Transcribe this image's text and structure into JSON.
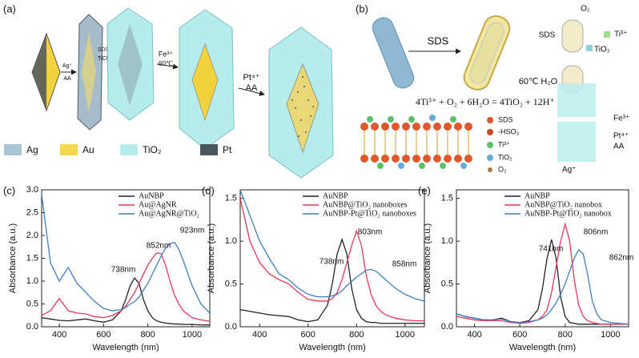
{
  "panel_a": {
    "label": "(a)",
    "steps": [
      {
        "top": "Ag⁺",
        "bottom": "AA"
      },
      {
        "top": "SDS",
        "bottom": "TiCl₃"
      },
      {
        "top": "Fe³⁺",
        "bottom": "60℃"
      },
      {
        "top": "Pt⁴⁺",
        "bottom": "AA"
      }
    ],
    "legend": [
      "Ag",
      "Au",
      "TiO₂",
      "Pt"
    ]
  },
  "panel_b": {
    "label": "(b)",
    "arrow": "SDS",
    "equation": "4Ti³⁺ + O₂ + 6H₂O = 4TiO₂ + 12H⁺",
    "scheme": {
      "sds": "SDS",
      "o2": "O₂",
      "ti": "Ti³⁺",
      "tio2": "TiO₂",
      "heat": "60℃ H₂O",
      "fe": "Fe³⁺",
      "pt": "Pt⁴⁺",
      "aa": "AA",
      "ag": "Ag⁺"
    },
    "legend": [
      "SDS",
      "-HSO₃",
      "Ti³⁺",
      "TiO₂",
      "O₂"
    ]
  },
  "chart_data": [
    {
      "type": "line",
      "title": "(c)",
      "x_label": "Wavelength (nm)",
      "y_label": "Absorbance (a.u.)",
      "x": [
        320,
        360,
        400,
        440,
        480,
        520,
        560,
        600,
        640,
        680,
        700,
        720,
        740,
        760,
        780,
        800,
        820,
        840,
        860,
        880,
        900,
        920,
        940,
        960,
        1000,
        1040,
        1080
      ],
      "xlim": [
        320,
        1080
      ],
      "xticks": [
        400,
        600,
        800,
        1000
      ],
      "ylim": [
        0,
        3
      ],
      "yticks": [
        {
          "value": 0,
          "label": "0.0"
        },
        {
          "value": 0.5,
          "label": "0.5"
        },
        {
          "value": 1,
          "label": "1.0"
        },
        {
          "value": 1.5,
          "label": "1.5"
        },
        {
          "value": 2,
          "label": "2.0"
        },
        {
          "value": 2.5,
          "label": "2.5"
        },
        {
          "value": 3,
          "label": "3.0"
        }
      ],
      "series": [
        {
          "name": "AuNBP",
          "color": "#222222",
          "values": [
            0.2,
            0.17,
            0.14,
            0.13,
            0.15,
            0.17,
            0.13,
            0.1,
            0.15,
            0.35,
            0.6,
            0.9,
            1.07,
            0.95,
            0.6,
            0.35,
            0.2,
            0.13,
            0.1,
            0.08,
            0.07,
            0.06,
            0.06,
            0.05,
            0.05,
            0.04,
            0.04
          ]
        },
        {
          "name": "Au@AgNR",
          "color": "#e8365a",
          "values": [
            0.25,
            0.35,
            0.62,
            0.35,
            0.3,
            0.28,
            0.22,
            0.2,
            0.25,
            0.35,
            0.45,
            0.6,
            0.75,
            0.95,
            1.15,
            1.35,
            1.5,
            1.62,
            1.6,
            1.35,
            1.0,
            0.7,
            0.5,
            0.35,
            0.2,
            0.15,
            0.12
          ]
        },
        {
          "name": "Au@AgNR@TiO₂",
          "color": "#3d7fc4",
          "values": [
            2.9,
            1.4,
            1.0,
            1.3,
            0.95,
            0.75,
            0.55,
            0.4,
            0.35,
            0.38,
            0.42,
            0.5,
            0.55,
            0.65,
            0.8,
            0.95,
            1.15,
            1.35,
            1.55,
            1.72,
            1.82,
            1.85,
            1.7,
            1.45,
            0.9,
            0.5,
            0.3
          ]
        }
      ],
      "annotations": [
        "738nm",
        "852nm",
        "923nm"
      ]
    },
    {
      "type": "line",
      "title": "(d)",
      "x_label": "Wavelength (nm)",
      "y_label": "Absorbance (a.u.)",
      "x": [
        320,
        360,
        400,
        440,
        480,
        520,
        560,
        600,
        640,
        680,
        700,
        720,
        740,
        760,
        780,
        800,
        820,
        840,
        860,
        880,
        900,
        920,
        940,
        960,
        1000,
        1040,
        1080
      ],
      "xlim": [
        320,
        1080
      ],
      "xticks": [
        400,
        600,
        800,
        1000
      ],
      "ylim": [
        0,
        1.6
      ],
      "yticks": [
        {
          "value": 0,
          "label": "0.0"
        },
        0.5,
        {
          "value": 1,
          "label": "1.0"
        },
        1.5
      ],
      "series": [
        {
          "name": "AuNBP",
          "color": "#222222",
          "values": [
            0.2,
            0.18,
            0.16,
            0.14,
            0.13,
            0.12,
            0.08,
            0.06,
            0.08,
            0.25,
            0.5,
            0.85,
            1.02,
            0.85,
            0.45,
            0.2,
            0.1,
            0.06,
            0.05,
            0.05,
            0.04,
            0.04,
            0.04,
            0.04,
            0.04,
            0.04,
            0.04
          ]
        },
        {
          "name": "AuNBP@TiO₂ nanoboxes",
          "color": "#e8365a",
          "values": [
            1.5,
            1.0,
            0.75,
            0.62,
            0.55,
            0.5,
            0.4,
            0.32,
            0.3,
            0.3,
            0.33,
            0.4,
            0.55,
            0.75,
            0.95,
            1.12,
            0.95,
            0.6,
            0.38,
            0.25,
            0.18,
            0.14,
            0.12,
            0.1,
            0.08,
            0.07,
            0.07
          ]
        },
        {
          "name": "AuNBP-Pt@TiO₂ nanoboxes",
          "color": "#3d7fc4",
          "values": [
            1.6,
            1.3,
            1.0,
            0.8,
            0.62,
            0.55,
            0.45,
            0.38,
            0.35,
            0.35,
            0.36,
            0.38,
            0.42,
            0.48,
            0.53,
            0.58,
            0.62,
            0.66,
            0.67,
            0.65,
            0.6,
            0.55,
            0.5,
            0.45,
            0.38,
            0.33,
            0.3
          ]
        }
      ],
      "annotations": [
        "738nm",
        "803nm",
        "858nm"
      ]
    },
    {
      "type": "line",
      "title": "(e)",
      "x_label": "Wavelength (nm)",
      "y_label": "Absorbance (a.u.)",
      "x": [
        320,
        360,
        400,
        440,
        480,
        520,
        560,
        600,
        640,
        680,
        700,
        720,
        740,
        760,
        780,
        800,
        820,
        840,
        860,
        880,
        900,
        920,
        940,
        960,
        1000,
        1040,
        1080
      ],
      "xlim": [
        320,
        1080
      ],
      "xticks": [
        400,
        600,
        800,
        1000
      ],
      "ylim": [
        0,
        1.6
      ],
      "yticks": [
        {
          "value": 0,
          "label": "0.0"
        },
        0.5,
        {
          "value": 1,
          "label": "1.0"
        },
        1.5
      ],
      "series": [
        {
          "name": "AuNBP",
          "color": "#222222",
          "values": [
            0.15,
            0.12,
            0.1,
            0.08,
            0.08,
            0.1,
            0.06,
            0.05,
            0.07,
            0.2,
            0.45,
            0.8,
            1.02,
            0.8,
            0.35,
            0.12,
            0.05,
            0.04,
            0.03,
            0.03,
            0.03,
            0.03,
            0.03,
            0.03,
            0.03,
            0.03,
            0.03
          ]
        },
        {
          "name": "AuNBP@TiO₂ nanobox",
          "color": "#e8365a",
          "values": [
            0.12,
            0.1,
            0.08,
            0.07,
            0.07,
            0.07,
            0.05,
            0.04,
            0.05,
            0.08,
            0.12,
            0.2,
            0.4,
            0.7,
            1.0,
            1.2,
            1.0,
            0.55,
            0.25,
            0.12,
            0.07,
            0.05,
            0.04,
            0.03,
            0.03,
            0.03,
            0.03
          ]
        },
        {
          "name": "AuNBP-Pt@TiO₂ nanobox",
          "color": "#3d7fc4",
          "values": [
            0.15,
            0.12,
            0.1,
            0.08,
            0.08,
            0.09,
            0.06,
            0.05,
            0.06,
            0.08,
            0.1,
            0.14,
            0.2,
            0.28,
            0.38,
            0.5,
            0.65,
            0.8,
            0.9,
            0.85,
            0.6,
            0.3,
            0.15,
            0.08,
            0.05,
            0.04,
            0.03
          ]
        }
      ],
      "annotations": [
        "741nm",
        "806nm",
        "862nm"
      ]
    }
  ]
}
